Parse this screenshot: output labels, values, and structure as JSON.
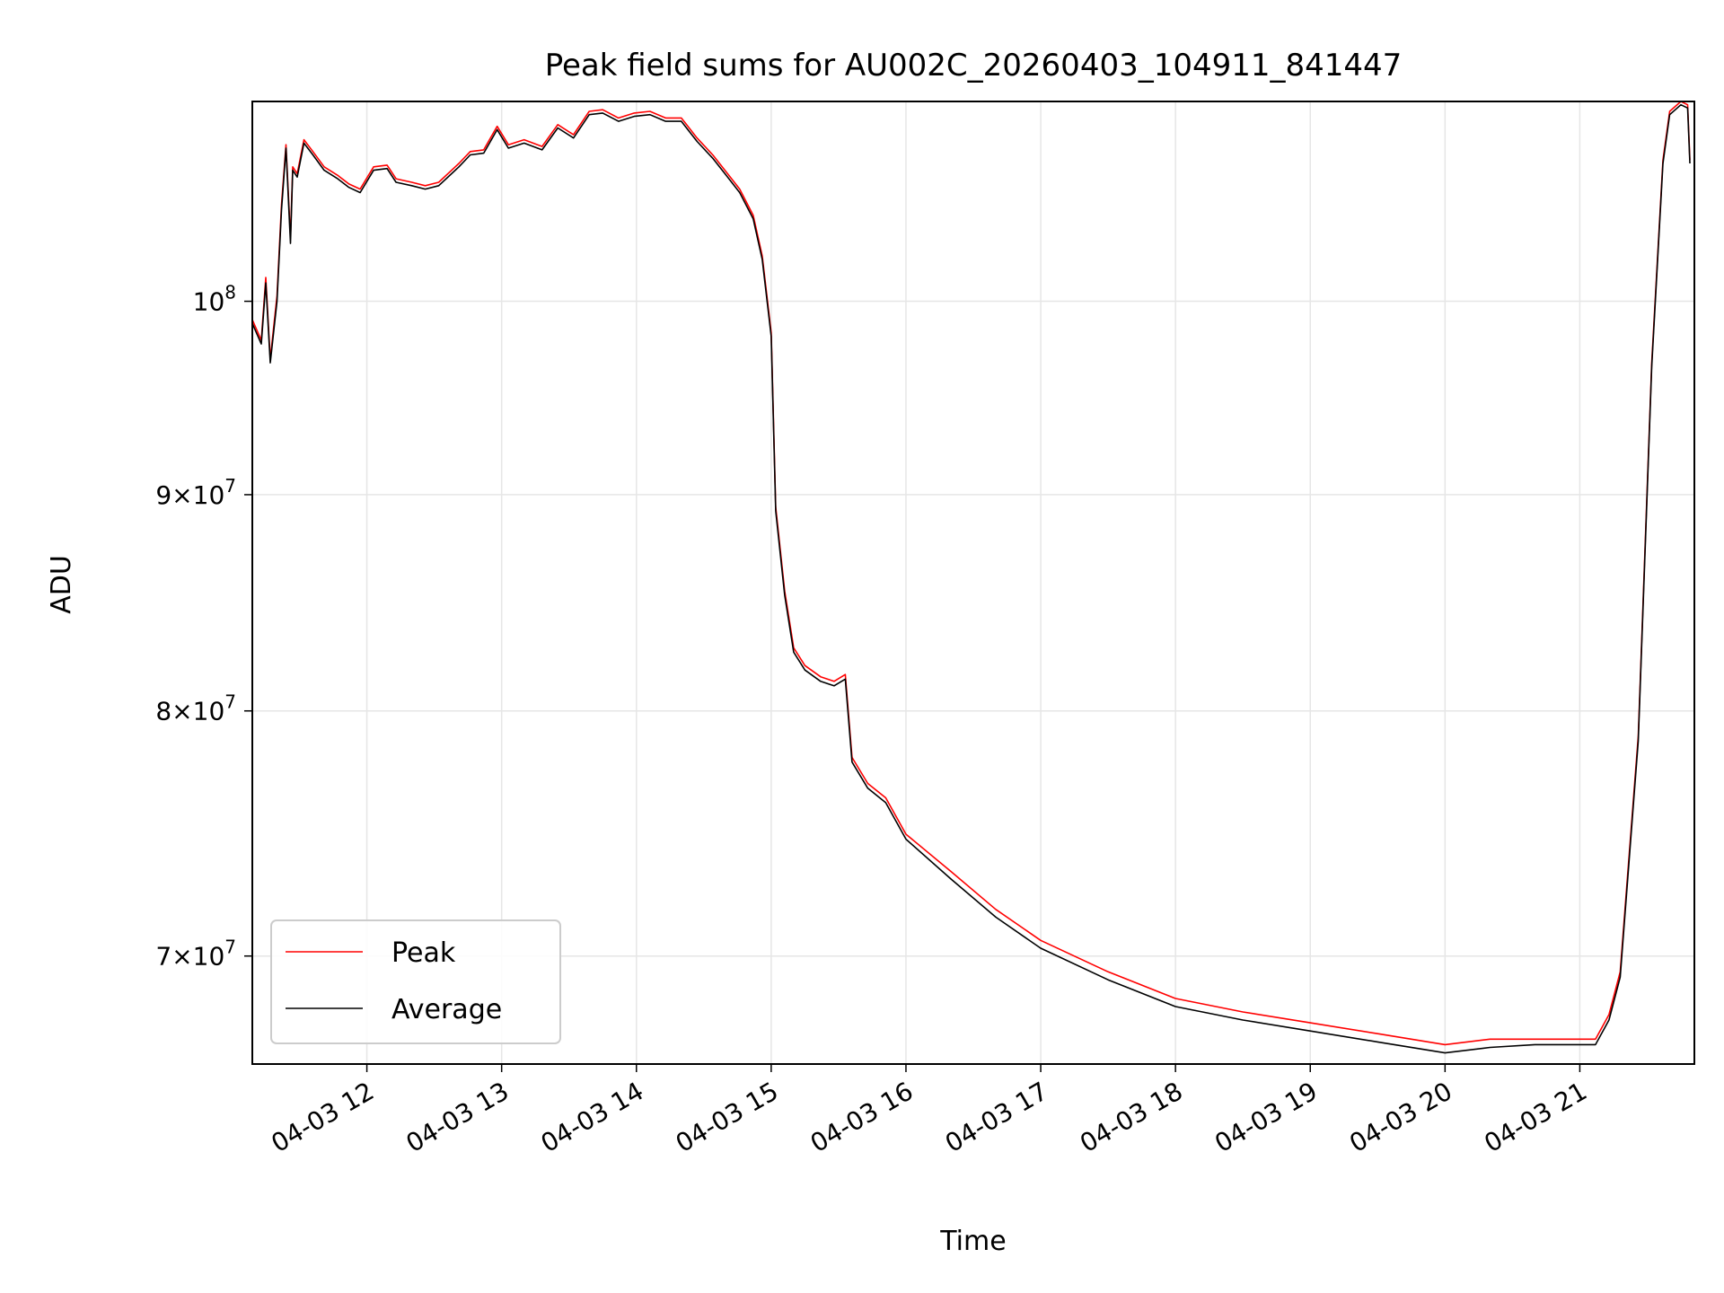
{
  "chart_data": {
    "type": "line",
    "title": "Peak field sums for AU002C_20260403_104911_841447",
    "xlabel": "Time",
    "ylabel": "ADU",
    "y_scale": "log",
    "ylim": [
      66000000,
      111500000
    ],
    "xlim": [
      "04-03 11:09",
      "04-03 21:51"
    ],
    "grid": true,
    "legend_location": "lower-left",
    "x_ticks": [
      {
        "value": "04-03 12:00",
        "label": "04-03 12"
      },
      {
        "value": "04-03 13:00",
        "label": "04-03 13"
      },
      {
        "value": "04-03 14:00",
        "label": "04-03 14"
      },
      {
        "value": "04-03 15:00",
        "label": "04-03 15"
      },
      {
        "value": "04-03 16:00",
        "label": "04-03 16"
      },
      {
        "value": "04-03 17:00",
        "label": "04-03 17"
      },
      {
        "value": "04-03 18:00",
        "label": "04-03 18"
      },
      {
        "value": "04-03 19:00",
        "label": "04-03 19"
      },
      {
        "value": "04-03 20:00",
        "label": "04-03 20"
      },
      {
        "value": "04-03 21:00",
        "label": "04-03 21"
      }
    ],
    "y_ticks": [
      {
        "value": 70000000,
        "mantissa": "7",
        "exponent": "7"
      },
      {
        "value": 80000000,
        "mantissa": "8",
        "exponent": "7"
      },
      {
        "value": 90000000,
        "mantissa": "9",
        "exponent": "7"
      },
      {
        "value": 100000000,
        "mantissa": "",
        "exponent": "8"
      }
    ],
    "series": [
      {
        "name": "Peak",
        "color": "#ff0000",
        "points": [
          [
            "04-03 11:09",
            99000000
          ],
          [
            "04-03 11:13",
            97900000
          ],
          [
            "04-03 11:15",
            101300000
          ],
          [
            "04-03 11:17",
            96900000
          ],
          [
            "04-03 11:20",
            100300000
          ],
          [
            "04-03 11:22",
            105400000
          ],
          [
            "04-03 11:24",
            108900000
          ],
          [
            "04-03 11:26",
            103500000
          ],
          [
            "04-03 11:27",
            107600000
          ],
          [
            "04-03 11:29",
            107200000
          ],
          [
            "04-03 11:32",
            109200000
          ],
          [
            "04-03 11:36",
            108500000
          ],
          [
            "04-03 11:41",
            107600000
          ],
          [
            "04-03 11:47",
            107100000
          ],
          [
            "04-03 11:52",
            106600000
          ],
          [
            "04-03 11:57",
            106300000
          ],
          [
            "04-03 12:03",
            107600000
          ],
          [
            "04-03 12:09",
            107700000
          ],
          [
            "04-03 12:13",
            106900000
          ],
          [
            "04-03 12:20",
            106700000
          ],
          [
            "04-03 12:26",
            106500000
          ],
          [
            "04-03 12:32",
            106700000
          ],
          [
            "04-03 12:41",
            107800000
          ],
          [
            "04-03 12:46",
            108500000
          ],
          [
            "04-03 12:52",
            108600000
          ],
          [
            "04-03 12:58",
            110000000
          ],
          [
            "04-03 13:03",
            108900000
          ],
          [
            "04-03 13:10",
            109200000
          ],
          [
            "04-03 13:18",
            108800000
          ],
          [
            "04-03 13:25",
            110100000
          ],
          [
            "04-03 13:32",
            109500000
          ],
          [
            "04-03 13:39",
            110900000
          ],
          [
            "04-03 13:45",
            111000000
          ],
          [
            "04-03 13:52",
            110500000
          ],
          [
            "04-03 13:59",
            110800000
          ],
          [
            "04-03 14:06",
            110900000
          ],
          [
            "04-03 14:13",
            110500000
          ],
          [
            "04-03 14:20",
            110500000
          ],
          [
            "04-03 14:27",
            109300000
          ],
          [
            "04-03 14:34",
            108300000
          ],
          [
            "04-03 14:40",
            107300000
          ],
          [
            "04-03 14:46",
            106300000
          ],
          [
            "04-03 14:52",
            104800000
          ],
          [
            "04-03 14:56",
            102500000
          ],
          [
            "04-03 15:00",
            98300000
          ],
          [
            "04-03 15:02",
            89400000
          ],
          [
            "04-03 15:06",
            85400000
          ],
          [
            "04-03 15:10",
            82800000
          ],
          [
            "04-03 15:15",
            82000000
          ],
          [
            "04-03 15:22",
            81500000
          ],
          [
            "04-03 15:28",
            81300000
          ],
          [
            "04-03 15:33",
            81600000
          ],
          [
            "04-03 15:36",
            78000000
          ],
          [
            "04-03 15:43",
            76900000
          ],
          [
            "04-03 15:51",
            76300000
          ],
          [
            "04-03 16:00",
            74800000
          ],
          [
            "04-03 16:20",
            73300000
          ],
          [
            "04-03 16:40",
            71800000
          ],
          [
            "04-03 17:00",
            70600000
          ],
          [
            "04-03 17:30",
            69400000
          ],
          [
            "04-03 18:00",
            68400000
          ],
          [
            "04-03 18:30",
            67900000
          ],
          [
            "04-03 19:00",
            67500000
          ],
          [
            "04-03 19:30",
            67100000
          ],
          [
            "04-03 20:00",
            66700000
          ],
          [
            "04-03 20:20",
            66900000
          ],
          [
            "04-03 20:40",
            66900000
          ],
          [
            "04-03 20:55",
            66900000
          ],
          [
            "04-03 21:07",
            66900000
          ],
          [
            "04-03 21:13",
            67800000
          ],
          [
            "04-03 21:18",
            69400000
          ],
          [
            "04-03 21:26",
            78900000
          ],
          [
            "04-03 21:32",
            96700000
          ],
          [
            "04-03 21:37",
            108000000
          ],
          [
            "04-03 21:40",
            110900000
          ],
          [
            "04-03 21:45",
            111500000
          ],
          [
            "04-03 21:48",
            111300000
          ],
          [
            "04-03 21:49",
            108000000
          ]
        ]
      },
      {
        "name": "Average",
        "color": "#000000",
        "points": [
          [
            "04-03 11:09",
            98800000
          ],
          [
            "04-03 11:13",
            97700000
          ],
          [
            "04-03 11:15",
            101000000
          ],
          [
            "04-03 11:17",
            96700000
          ],
          [
            "04-03 11:20",
            100000000
          ],
          [
            "04-03 11:22",
            105100000
          ],
          [
            "04-03 11:24",
            108700000
          ],
          [
            "04-03 11:26",
            103200000
          ],
          [
            "04-03 11:27",
            107400000
          ],
          [
            "04-03 11:29",
            107000000
          ],
          [
            "04-03 11:32",
            109000000
          ],
          [
            "04-03 11:36",
            108300000
          ],
          [
            "04-03 11:41",
            107400000
          ],
          [
            "04-03 11:47",
            106900000
          ],
          [
            "04-03 11:52",
            106400000
          ],
          [
            "04-03 11:57",
            106100000
          ],
          [
            "04-03 12:03",
            107400000
          ],
          [
            "04-03 12:09",
            107500000
          ],
          [
            "04-03 12:13",
            106700000
          ],
          [
            "04-03 12:20",
            106500000
          ],
          [
            "04-03 12:26",
            106300000
          ],
          [
            "04-03 12:32",
            106500000
          ],
          [
            "04-03 12:41",
            107600000
          ],
          [
            "04-03 12:46",
            108300000
          ],
          [
            "04-03 12:52",
            108400000
          ],
          [
            "04-03 12:58",
            109800000
          ],
          [
            "04-03 13:03",
            108700000
          ],
          [
            "04-03 13:10",
            109000000
          ],
          [
            "04-03 13:18",
            108600000
          ],
          [
            "04-03 13:25",
            109900000
          ],
          [
            "04-03 13:32",
            109300000
          ],
          [
            "04-03 13:39",
            110700000
          ],
          [
            "04-03 13:45",
            110800000
          ],
          [
            "04-03 13:52",
            110300000
          ],
          [
            "04-03 13:59",
            110600000
          ],
          [
            "04-03 14:06",
            110700000
          ],
          [
            "04-03 14:13",
            110300000
          ],
          [
            "04-03 14:20",
            110300000
          ],
          [
            "04-03 14:27",
            109100000
          ],
          [
            "04-03 14:34",
            108100000
          ],
          [
            "04-03 14:40",
            107100000
          ],
          [
            "04-03 14:46",
            106100000
          ],
          [
            "04-03 14:52",
            104600000
          ],
          [
            "04-03 14:56",
            102300000
          ],
          [
            "04-03 15:00",
            98100000
          ],
          [
            "04-03 15:02",
            89200000
          ],
          [
            "04-03 15:06",
            85200000
          ],
          [
            "04-03 15:10",
            82600000
          ],
          [
            "04-03 15:15",
            81800000
          ],
          [
            "04-03 15:22",
            81300000
          ],
          [
            "04-03 15:28",
            81100000
          ],
          [
            "04-03 15:33",
            81400000
          ],
          [
            "04-03 15:36",
            77800000
          ],
          [
            "04-03 15:43",
            76700000
          ],
          [
            "04-03 15:51",
            76100000
          ],
          [
            "04-03 16:00",
            74600000
          ],
          [
            "04-03 16:20",
            73000000
          ],
          [
            "04-03 16:40",
            71500000
          ],
          [
            "04-03 17:00",
            70300000
          ],
          [
            "04-03 17:30",
            69100000
          ],
          [
            "04-03 18:00",
            68100000
          ],
          [
            "04-03 18:30",
            67600000
          ],
          [
            "04-03 19:00",
            67200000
          ],
          [
            "04-03 19:30",
            66800000
          ],
          [
            "04-03 20:00",
            66400000
          ],
          [
            "04-03 20:20",
            66600000
          ],
          [
            "04-03 20:40",
            66700000
          ],
          [
            "04-03 20:55",
            66700000
          ],
          [
            "04-03 21:07",
            66700000
          ],
          [
            "04-03 21:13",
            67600000
          ],
          [
            "04-03 21:18",
            69200000
          ],
          [
            "04-03 21:26",
            78700000
          ],
          [
            "04-03 21:32",
            96500000
          ],
          [
            "04-03 21:37",
            107800000
          ],
          [
            "04-03 21:40",
            110700000
          ],
          [
            "04-03 21:45",
            111300000
          ],
          [
            "04-03 21:48",
            111100000
          ],
          [
            "04-03 21:49",
            107800000
          ]
        ]
      }
    ]
  }
}
